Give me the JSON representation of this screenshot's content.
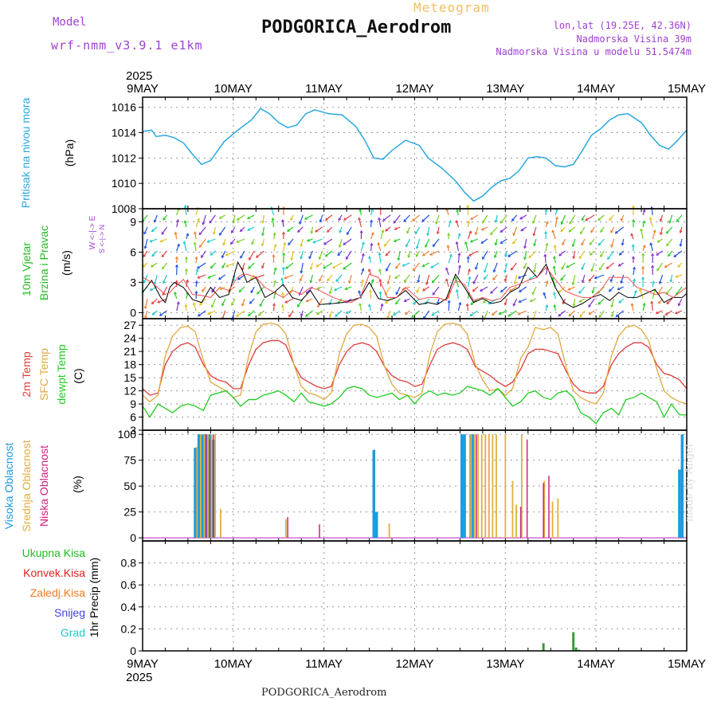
{
  "header": {
    "model_label": "Model",
    "model_name": "wrf-nmm_v3.9.1 e1km",
    "station": "PODGORICA_Aerodrom",
    "meteogram_label": "Meteogram",
    "lonlat": "lon,lat (19.25E, 42.36N)",
    "altitude": "Nadmorska Visina 39m",
    "model_altitude": "Nadmorska Visina u modelu 51.5474m",
    "credit": "made by Angel",
    "footer_station": "PODGORICA_Aerodrom"
  },
  "colors": {
    "pressure": "#2aa8e0",
    "temp2m": "#e03c3c",
    "sfc": "#e0a840",
    "dewpt": "#22cc22",
    "high_cloud": "#1e9be0",
    "mid_cloud": "#e0b040",
    "low_cloud": "#d02080",
    "total_precip": "#3a9a3a",
    "grid": "#999999"
  },
  "chart_data": [
    {
      "id": "pressure",
      "type": "line",
      "ylabel_left": "Pritisak na nivou mora",
      "ylabel_right": "(hPa)",
      "ylim": [
        1008,
        1016.8
      ],
      "yticks": [
        1008,
        1010,
        1012,
        1014,
        1016
      ],
      "x_days": [
        0,
        0.1,
        0.15,
        0.25,
        0.35,
        0.45,
        0.55,
        0.65,
        0.75,
        0.9,
        1.05,
        1.2,
        1.3,
        1.4,
        1.5,
        1.6,
        1.7,
        1.8,
        1.9,
        2.05,
        2.2,
        2.35,
        2.45,
        2.55,
        2.65,
        2.75,
        2.9,
        3.05,
        3.15,
        3.3,
        3.45,
        3.55,
        3.65,
        3.75,
        3.85,
        3.95,
        4.05,
        4.15,
        4.25,
        4.35,
        4.45,
        4.55,
        4.65,
        4.75,
        4.85,
        4.95,
        5.05,
        5.15,
        5.25,
        5.35,
        5.5,
        5.6,
        5.7,
        5.8,
        5.9,
        6.0
      ],
      "values": [
        1014.1,
        1014.2,
        1013.7,
        1013.8,
        1013.6,
        1013.2,
        1012.3,
        1011.5,
        1011.8,
        1013.3,
        1014.2,
        1015.0,
        1015.9,
        1015.5,
        1014.8,
        1014.4,
        1014.6,
        1015.5,
        1015.8,
        1015.5,
        1015.4,
        1014.5,
        1013.4,
        1012.0,
        1011.9,
        1012.6,
        1013.4,
        1013.0,
        1012.0,
        1011.2,
        1010.2,
        1009.3,
        1008.6,
        1009.0,
        1009.7,
        1010.2,
        1010.4,
        1011.0,
        1012.0,
        1012.1,
        1012.0,
        1011.4,
        1011.3,
        1011.5,
        1012.6,
        1013.8,
        1014.3,
        1015.0,
        1015.4,
        1015.5,
        1014.8,
        1013.8,
        1013.0,
        1012.7,
        1013.4,
        1014.2
      ]
    },
    {
      "id": "wind",
      "type": "line",
      "ylabel_left": "10m Vjetar Brzina i Pravac",
      "ylabel_left_lines": [
        "10m Vjetar",
        "Brzina i Pravac"
      ],
      "ylabel_right": "(m/s)",
      "compass_label": "W <-|-> E",
      "compass_sublabel": "S <-|-> N",
      "ylim": [
        -0.6,
        10.3
      ],
      "yticks": [
        0,
        3,
        6,
        9
      ],
      "x_days": [
        0,
        0.1,
        0.2,
        0.25,
        0.3,
        0.35,
        0.45,
        0.55,
        0.65,
        0.75,
        0.85,
        0.95,
        1.05,
        1.1,
        1.15,
        1.25,
        1.35,
        1.45,
        1.55,
        1.65,
        1.75,
        1.85,
        1.95,
        2.1,
        2.2,
        2.3,
        2.4,
        2.5,
        2.6,
        2.7,
        2.8,
        2.9,
        3.05,
        3.15,
        3.25,
        3.35,
        3.45,
        3.55,
        3.65,
        3.75,
        3.85,
        3.95,
        4.05,
        4.15,
        4.25,
        4.35,
        4.45,
        4.55,
        4.65,
        4.75,
        4.85,
        4.95,
        5.05,
        5.15,
        5.25,
        5.35,
        5.45,
        5.55,
        5.65,
        5.75,
        5.85,
        5.95,
        6.0
      ],
      "values": [
        2.0,
        3.2,
        1.5,
        1.0,
        2.5,
        3.0,
        2.5,
        1.3,
        1.0,
        2.5,
        1.5,
        1.8,
        5.0,
        4.2,
        3.0,
        3.5,
        1.5,
        2.0,
        2.8,
        1.5,
        1.2,
        2.2,
        0.8,
        0.9,
        1.0,
        1.2,
        1.5,
        3.0,
        1.4,
        1.2,
        1.5,
        2.2,
        0.8,
        1.0,
        0.8,
        1.4,
        3.8,
        2.5,
        1.0,
        1.4,
        0.9,
        1.1,
        2.0,
        2.5,
        4.5,
        3.5,
        4.8,
        2.5,
        1.0,
        0.5,
        0.9,
        1.5,
        1.8,
        1.2,
        2.0,
        1.5,
        1.5,
        1.9,
        2.3,
        1.0,
        1.5,
        1.5,
        1.9
      ],
      "gust_values": [
        3.5,
        3.0,
        2.2,
        1.8,
        2.0,
        2.5,
        3.3,
        1.8,
        1.7,
        1.5,
        2.5,
        2.2,
        3.5,
        3.8,
        3.8,
        3.5,
        2.5,
        2.0,
        1.5,
        2.2,
        1.8,
        2.5,
        2.2,
        1.5,
        1.2,
        1.0,
        1.5,
        3.8,
        3.5,
        1.5,
        1.5,
        2.5,
        1.3,
        1.5,
        1.5,
        1.2,
        3.2,
        2.8,
        1.2,
        1.5,
        1.2,
        1.4,
        2.5,
        2.8,
        3.2,
        3.5,
        4.5,
        3.3,
        2.2,
        1.8,
        1.5,
        1.5,
        2.2,
        3.5,
        3.5,
        3.5,
        2.5,
        2.2,
        1.8,
        2.0,
        1.5,
        2.2,
        2.5
      ]
    },
    {
      "id": "temperature",
      "type": "line",
      "ylabel_left_lines": [
        "2m Temp",
        "SFC Temp",
        "dewpt Temp"
      ],
      "ylabel_right": "(C)",
      "ylim": [
        3,
        28.5
      ],
      "yticks": [
        3,
        6,
        9,
        12,
        15,
        18,
        21,
        24,
        27
      ],
      "x_days": [
        0,
        0.08,
        0.17,
        0.25,
        0.33,
        0.42,
        0.5,
        0.58,
        0.67,
        0.75,
        0.83,
        0.92,
        1.0,
        1.08,
        1.17,
        1.25,
        1.33,
        1.42,
        1.5,
        1.58,
        1.67,
        1.75,
        1.83,
        1.92,
        2.0,
        2.08,
        2.17,
        2.25,
        2.33,
        2.42,
        2.5,
        2.58,
        2.67,
        2.75,
        2.83,
        2.92,
        3.0,
        3.08,
        3.17,
        3.25,
        3.33,
        3.42,
        3.5,
        3.58,
        3.67,
        3.75,
        3.83,
        3.92,
        4.0,
        4.08,
        4.17,
        4.25,
        4.33,
        4.42,
        4.5,
        4.58,
        4.67,
        4.75,
        4.83,
        4.92,
        5.0,
        5.08,
        5.17,
        5.25,
        5.33,
        5.42,
        5.5,
        5.58,
        5.67,
        5.75,
        5.83,
        5.92,
        6.0
      ],
      "series": [
        {
          "name": "2m Temp",
          "values": [
            12.5,
            11.0,
            11.5,
            18.0,
            21.0,
            22.5,
            23.0,
            22.0,
            18.0,
            15.5,
            14.5,
            14.0,
            12.5,
            12.5,
            18.0,
            21.5,
            23.0,
            23.5,
            23.5,
            22.5,
            18.0,
            15.0,
            14.0,
            13.0,
            12.5,
            13.0,
            18.0,
            21.0,
            22.5,
            23.0,
            22.5,
            21.0,
            17.5,
            15.5,
            14.5,
            14.0,
            13.0,
            13.5,
            18.0,
            21.5,
            22.5,
            23.0,
            22.5,
            21.5,
            17.5,
            16.5,
            15.5,
            14.0,
            13.0,
            14.0,
            17.0,
            20.5,
            21.5,
            21.5,
            21.0,
            20.5,
            16.5,
            13.5,
            12.0,
            11.5,
            11.5,
            13.0,
            18.0,
            20.5,
            22.0,
            23.0,
            23.0,
            22.0,
            18.0,
            16.0,
            15.5,
            14.5,
            12.5
          ]
        },
        {
          "name": "SFC Temp",
          "values": [
            11.0,
            9.5,
            11.0,
            20.0,
            24.5,
            26.5,
            26.8,
            25.5,
            19.0,
            14.0,
            13.0,
            12.0,
            10.5,
            11.0,
            20.0,
            25.5,
            27.2,
            27.5,
            27.0,
            25.0,
            18.0,
            13.0,
            11.5,
            11.0,
            10.0,
            11.5,
            20.5,
            25.0,
            27.0,
            27.2,
            26.5,
            24.5,
            17.5,
            13.5,
            11.5,
            11.0,
            10.5,
            11.5,
            20.5,
            25.5,
            27.2,
            27.5,
            27.0,
            25.0,
            18.0,
            14.5,
            12.0,
            12.5,
            11.0,
            12.5,
            19.5,
            22.0,
            26.5,
            26.0,
            26.5,
            25.0,
            17.5,
            12.0,
            10.5,
            9.5,
            9.0,
            11.5,
            20.0,
            24.5,
            26.5,
            27.0,
            26.0,
            23.5,
            17.0,
            12.0,
            10.5,
            9.5,
            9.0
          ]
        },
        {
          "name": "dewpt Temp",
          "values": [
            8.5,
            6.0,
            9.0,
            8.0,
            7.0,
            8.5,
            9.0,
            8.5,
            7.5,
            11.0,
            11.5,
            12.0,
            10.5,
            8.5,
            10.0,
            10.0,
            11.0,
            11.5,
            12.0,
            11.0,
            9.5,
            11.5,
            9.5,
            9.0,
            8.5,
            9.0,
            10.5,
            12.5,
            13.0,
            12.5,
            11.0,
            10.5,
            11.0,
            11.5,
            10.0,
            11.0,
            9.0,
            11.0,
            12.0,
            11.0,
            11.5,
            11.0,
            11.5,
            13.0,
            12.5,
            12.0,
            11.0,
            12.5,
            10.5,
            8.5,
            9.5,
            11.5,
            12.0,
            10.5,
            10.0,
            11.5,
            12.0,
            10.5,
            7.0,
            6.0,
            4.5,
            7.0,
            8.0,
            6.5,
            10.0,
            10.5,
            11.5,
            10.5,
            9.5,
            6.0,
            9.0,
            6.5,
            6.5
          ]
        }
      ]
    },
    {
      "id": "cloud",
      "type": "bar",
      "ylabel_left_lines": [
        "Visoka Oblacnost",
        "Srednja Oblacnost",
        "Niska Oblacnost"
      ],
      "ylabel_right": "(%)",
      "ylim": [
        -3,
        104
      ],
      "yticks": [
        0,
        25,
        50,
        75,
        100
      ],
      "series": [
        {
          "name": "Visoka Oblacnost",
          "x_days": [
            0.58,
            0.62,
            0.66,
            0.7,
            0.74,
            0.78,
            2.55,
            2.58,
            3.52,
            3.55,
            3.62,
            3.65,
            5.92,
            5.95
          ],
          "values": [
            87,
            100,
            100,
            100,
            100,
            95,
            85,
            25,
            100,
            100,
            100,
            100,
            66,
            100
          ]
        },
        {
          "name": "Srednja Oblacnost",
          "x_days": [
            0.6,
            0.64,
            0.68,
            0.72,
            0.76,
            0.8,
            0.86,
            1.58,
            2.72,
            3.62,
            3.66,
            3.7,
            3.74,
            3.78,
            3.82,
            3.86,
            3.9,
            4.0,
            4.08,
            4.12,
            4.18,
            4.43,
            4.52,
            4.58
          ],
          "values": [
            88,
            100,
            100,
            100,
            100,
            100,
            28,
            18,
            14,
            100,
            100,
            100,
            100,
            100,
            100,
            100,
            100,
            100,
            55,
            32,
            100,
            55,
            35,
            38
          ]
        },
        {
          "name": "Niska Oblacnost",
          "x_days": [
            0.7,
            0.74,
            0.78,
            1.6,
            1.95,
            3.68,
            4.17,
            4.24,
            4.42,
            4.48
          ],
          "values": [
            100,
            95,
            100,
            20,
            13,
            100,
            30,
            95,
            53,
            60
          ]
        }
      ]
    },
    {
      "id": "precip",
      "type": "bar",
      "ylabel_right": "1hr Precip (mm)",
      "legend": [
        "Ukupna Kisa",
        "Konvek.Kisa",
        "Zaledj.Kisa",
        "Snijeg",
        "Grad"
      ],
      "ylim": [
        0,
        1.0
      ],
      "yticks": [
        0,
        0.2,
        0.4,
        0.6,
        0.8
      ],
      "series": [
        {
          "name": "Ukupna Kisa",
          "x_days": [
            4.42,
            4.75,
            4.78,
            4.81
          ],
          "values": [
            0.07,
            0.17,
            0.03,
            0.01
          ]
        }
      ]
    }
  ],
  "x_axis": {
    "start_label": "2025",
    "end_label": "2025",
    "ticks": [
      "9MAY",
      "10MAY",
      "11MAY",
      "12MAY",
      "13MAY",
      "14MAY",
      "15MAY"
    ]
  }
}
